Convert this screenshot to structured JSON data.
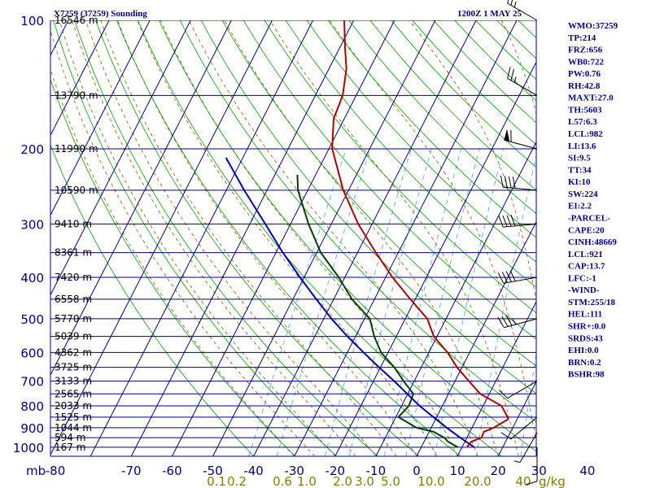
{
  "header": {
    "station": "X7259 (37259) Sounding",
    "time": "1200Z  1 MAY 25"
  },
  "chart_data": {
    "type": "skew-t log-p sounding",
    "pressure_levels": [
      100,
      200,
      300,
      400,
      500,
      600,
      700,
      800,
      900,
      1000
    ],
    "pressure_unit": "mb",
    "temperature_ticks": [
      -80,
      -70,
      -60,
      -50,
      -40,
      -30,
      -20,
      -10,
      0,
      10,
      20,
      30,
      40
    ],
    "mixing_ratio_labels": [
      "0.1",
      "0.2",
      "0.6",
      "1.0",
      "2.0",
      "3.0",
      "5.0",
      "10.0",
      "20.0",
      "40",
      "g/kg"
    ],
    "height_labels": [
      {
        "p": 100,
        "label": "16546 m"
      },
      {
        "p": 150,
        "label": "13790 m"
      },
      {
        "p": 200,
        "label": "11990 m"
      },
      {
        "p": 250,
        "label": "10590 m"
      },
      {
        "p": 300,
        "label": "9410 m"
      },
      {
        "p": 350,
        "label": "8361 m"
      },
      {
        "p": 400,
        "label": "7420 m"
      },
      {
        "p": 450,
        "label": "6558 m"
      },
      {
        "p": 500,
        "label": "5770 m"
      },
      {
        "p": 550,
        "label": "5039 m"
      },
      {
        "p": 600,
        "label": "4362 m"
      },
      {
        "p": 650,
        "label": "3725 m"
      },
      {
        "p": 700,
        "label": "3133 m"
      },
      {
        "p": 750,
        "label": "2565 m"
      },
      {
        "p": 800,
        "label": "2033 m"
      },
      {
        "p": 850,
        "label": "1525 m"
      },
      {
        "p": 900,
        "label": "1044 m"
      },
      {
        "p": 950,
        "label": "594 m"
      },
      {
        "p": 1000,
        "label": "167 m"
      }
    ],
    "temperature_profile": [
      {
        "p": 1000,
        "t": 11.2
      },
      {
        "p": 970,
        "t": 11.6
      },
      {
        "p": 950,
        "t": 13.6
      },
      {
        "p": 920,
        "t": 13.4
      },
      {
        "p": 900,
        "t": 15.3
      },
      {
        "p": 860,
        "t": 17.8
      },
      {
        "p": 850,
        "t": 17.4
      },
      {
        "p": 800,
        "t": 14.5
      },
      {
        "p": 750,
        "t": 7.8
      },
      {
        "p": 700,
        "t": 3.4
      },
      {
        "p": 650,
        "t": -1.2
      },
      {
        "p": 600,
        "t": -5.4
      },
      {
        "p": 550,
        "t": -10.8
      },
      {
        "p": 500,
        "t": -14.6
      },
      {
        "p": 450,
        "t": -21.2
      },
      {
        "p": 400,
        "t": -28.3
      },
      {
        "p": 350,
        "t": -35.5
      },
      {
        "p": 300,
        "t": -43.4
      },
      {
        "p": 250,
        "t": -51.3
      },
      {
        "p": 220,
        "t": -55.8
      },
      {
        "p": 200,
        "t": -59.2
      },
      {
        "p": 170,
        "t": -62.6
      },
      {
        "p": 150,
        "t": -63.3
      },
      {
        "p": 130,
        "t": -65.7
      },
      {
        "p": 115,
        "t": -68.9
      },
      {
        "p": 100,
        "t": -72.3
      }
    ],
    "dewpoint_profile": [
      {
        "p": 1000,
        "t": 9.0
      },
      {
        "p": 970,
        "t": 5.8
      },
      {
        "p": 950,
        "t": 4.5
      },
      {
        "p": 920,
        "t": 1.1
      },
      {
        "p": 900,
        "t": -3.6
      },
      {
        "p": 850,
        "t": -9.4
      },
      {
        "p": 800,
        "t": -8.2
      },
      {
        "p": 750,
        "t": -8.6
      },
      {
        "p": 700,
        "t": -12.6
      },
      {
        "p": 650,
        "t": -16.6
      },
      {
        "p": 600,
        "t": -21.7
      },
      {
        "p": 550,
        "t": -25.4
      },
      {
        "p": 500,
        "t": -28.7
      },
      {
        "p": 450,
        "t": -35.5
      },
      {
        "p": 400,
        "t": -41.5
      },
      {
        "p": 350,
        "t": -49.0
      },
      {
        "p": 300,
        "t": -55.6
      },
      {
        "p": 250,
        "t": -62.4
      },
      {
        "p": 230,
        "t": -64.5
      }
    ],
    "parcel_profile": [
      {
        "p": 1000,
        "t": 13.0
      },
      {
        "p": 950,
        "t": 8.4
      },
      {
        "p": 900,
        "t": 3.8
      },
      {
        "p": 850,
        "t": -0.8
      },
      {
        "p": 800,
        "t": -5.6
      },
      {
        "p": 750,
        "t": -10.1
      },
      {
        "p": 700,
        "t": -14.9
      },
      {
        "p": 650,
        "t": -20.3
      },
      {
        "p": 600,
        "t": -26.0
      },
      {
        "p": 550,
        "t": -32.0
      },
      {
        "p": 500,
        "t": -38.1
      },
      {
        "p": 450,
        "t": -44.3
      },
      {
        "p": 400,
        "t": -51.0
      },
      {
        "p": 350,
        "t": -58.3
      },
      {
        "p": 300,
        "t": -66.2
      },
      {
        "p": 250,
        "t": -75.6
      },
      {
        "p": 210,
        "t": -84.1
      }
    ],
    "wind_barbs": [
      {
        "p": 100,
        "dir": 300,
        "speed": 25
      },
      {
        "p": 150,
        "dir": 300,
        "speed": 25
      },
      {
        "p": 200,
        "dir": 285,
        "speed": 60
      },
      {
        "p": 250,
        "dir": 275,
        "speed": 40
      },
      {
        "p": 300,
        "dir": 265,
        "speed": 40
      },
      {
        "p": 400,
        "dir": 260,
        "speed": 40
      },
      {
        "p": 500,
        "dir": 255,
        "speed": 35
      },
      {
        "p": 700,
        "dir": 240,
        "speed": 10
      },
      {
        "p": 850,
        "dir": 230,
        "speed": 10
      },
      {
        "p": 925,
        "dir": 210,
        "speed": 5
      },
      {
        "p": 1000,
        "dir": 180,
        "speed": 10
      }
    ]
  },
  "indices": [
    "WMO:37259",
    "TP:214",
    "FRZ:656",
    "WB0:722",
    "PW:0.76",
    "RH:42.8",
    "MAXT:27.0",
    "TH:5603",
    "L57:6.3",
    "LCL:982",
    "LI:13.6",
    "SI:9.5",
    "TT:34",
    "KI:10",
    "SW:224",
    "EI:2.2",
    "-PARCEL-",
    "CAPE:20",
    "CINH:48669",
    "LCL:921",
    "CAP:13.7",
    "LFC:-1",
    "-WIND-",
    "STM:255/18",
    "HEL:111",
    "SHR+:0.0",
    "SRDS:43",
    "EHI:0.0",
    "BRN:0.2",
    "BSHR:98"
  ],
  "colors": {
    "frame": "#000080",
    "temperature": "#b00000",
    "dewpoint": "#004000",
    "parcel": "#0000b0",
    "dry_adiabat": "#00a000",
    "moist_adiabat": "#806000",
    "mixing_ratio": "#4aa0e0",
    "barb": "#000000"
  }
}
